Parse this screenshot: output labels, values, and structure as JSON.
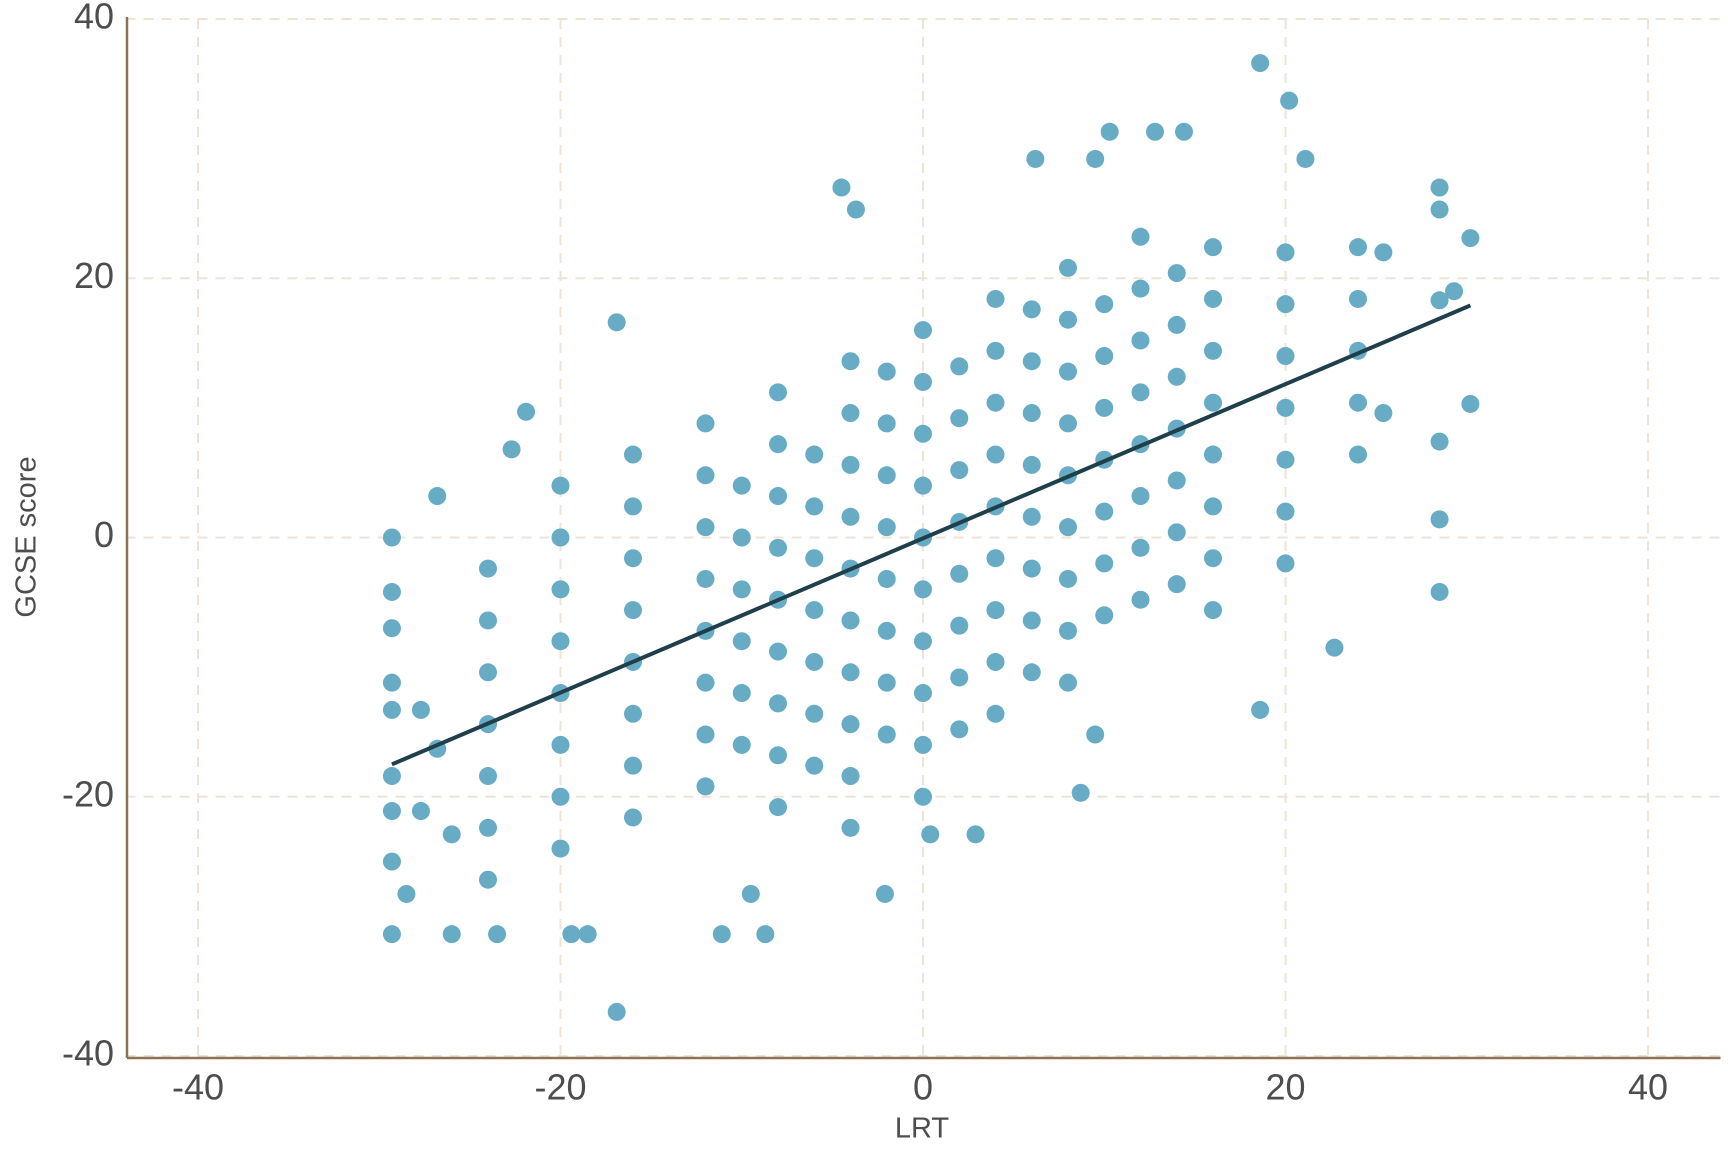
{
  "chart_data": {
    "type": "scatter",
    "x_label": "LRT",
    "y_label": "GCSE score",
    "x": [
      18.6,
      20.2,
      10.3,
      12.8,
      14.4,
      6.2,
      21.1,
      9.5,
      -4.5,
      -3.7,
      28.5,
      28.5,
      30.2,
      -16.9,
      -21.9,
      -22.7,
      -26.8,
      -29.3,
      -29.3,
      -29.3,
      -29.3,
      -29.3,
      -29.3,
      -29.3,
      -29.3,
      -29.3,
      -28.5,
      -26,
      -23.5,
      -16.9,
      -19.4,
      -18.5,
      -11.1,
      -8.7,
      -2.1,
      -9.5,
      28.5,
      28.5,
      22.7,
      18.6,
      8.7,
      9.5,
      30.2,
      28.5,
      28.5,
      29.3,
      25.4,
      25.4,
      2.9,
      0.4,
      -26,
      -27.7,
      -27.7,
      -26.8,
      -24,
      -24,
      -24,
      -24,
      -24,
      -24,
      -24,
      -20,
      -20,
      -20,
      -20,
      -20,
      -20,
      -20,
      -20,
      -16,
      -16,
      -16,
      -16,
      -16,
      -16,
      -16,
      -16,
      -12,
      -12,
      -12,
      -12,
      -12,
      -12,
      -12,
      -12,
      -8,
      -8,
      -8,
      -8,
      -8,
      -8,
      -8,
      -8,
      -8,
      -4,
      -4,
      -4,
      -4,
      -4,
      -4,
      -4,
      -4,
      -4,
      -4,
      0,
      0,
      0,
      0,
      0,
      0,
      0,
      0,
      0,
      0,
      4,
      4,
      4,
      4,
      4,
      4,
      4,
      4,
      4,
      8,
      8,
      8,
      8,
      8,
      8,
      8,
      8,
      8,
      12,
      12,
      12,
      12,
      12,
      12,
      12,
      12,
      16,
      16,
      16,
      16,
      16,
      16,
      16,
      16,
      20,
      20,
      20,
      20,
      20,
      20,
      20,
      24,
      24,
      24,
      24,
      24,
      -10,
      -10,
      -10,
      -10,
      -10,
      -10,
      -6,
      -6,
      -6,
      -6,
      -6,
      -6,
      -6,
      -2,
      -2,
      -2,
      -2,
      -2,
      -2,
      -2,
      -2,
      2,
      2,
      2,
      2,
      2,
      2,
      2,
      2,
      6,
      6,
      6,
      6,
      6,
      6,
      6,
      6,
      10,
      10,
      10,
      10,
      10,
      10,
      10,
      14,
      14,
      14,
      14,
      14,
      14,
      14
    ],
    "values": [
      36.6,
      33.7,
      31.3,
      31.3,
      31.3,
      29.2,
      29.2,
      29.2,
      27,
      25.3,
      27,
      25.3,
      23.1,
      16.6,
      9.7,
      6.8,
      3.2,
      0,
      -4.2,
      -7,
      -11.2,
      -13.3,
      -18.4,
      -21.1,
      -25,
      -30.6,
      -27.5,
      -30.6,
      -30.6,
      -36.6,
      -30.6,
      -30.6,
      -30.6,
      -30.6,
      -27.5,
      -27.5,
      -4.2,
      1.4,
      -8.5,
      -13.3,
      -19.7,
      -15.2,
      10.3,
      7.4,
      18.3,
      19,
      9.6,
      22,
      -22.9,
      -22.9,
      -22.9,
      -21.1,
      -13.3,
      -16.3,
      -26.4,
      -22.4,
      -18.4,
      -14.4,
      -10.4,
      -6.4,
      -2.4,
      -24,
      -20,
      -16,
      -12,
      -8,
      -4,
      0,
      4,
      -21.6,
      -17.6,
      -13.6,
      -9.6,
      -5.6,
      -1.6,
      2.4,
      6.4,
      -19.2,
      -15.2,
      -11.2,
      -7.2,
      -3.2,
      0.8,
      4.8,
      8.8,
      -20.8,
      -16.8,
      -12.8,
      -8.8,
      -4.8,
      -0.8,
      3.2,
      7.2,
      11.2,
      -22.4,
      -18.4,
      -14.4,
      -10.4,
      -6.4,
      -2.4,
      1.6,
      5.6,
      9.6,
      13.6,
      -20,
      -16,
      -12,
      -8,
      -4,
      0,
      4,
      8,
      12,
      16,
      -13.6,
      -9.6,
      -5.6,
      -1.6,
      2.4,
      6.4,
      10.4,
      14.4,
      18.4,
      -11.2,
      -7.2,
      -3.2,
      0.8,
      4.8,
      8.8,
      12.8,
      16.8,
      20.8,
      -4.8,
      -0.8,
      3.2,
      7.2,
      11.2,
      15.2,
      19.2,
      23.2,
      -5.6,
      -1.6,
      2.4,
      6.4,
      10.4,
      14.4,
      18.4,
      22.4,
      -2,
      2,
      6,
      10,
      14,
      18,
      22,
      6.4,
      10.4,
      14.4,
      18.4,
      22.4,
      -16,
      -12,
      -8,
      -4,
      0,
      4,
      -17.6,
      -13.6,
      -9.6,
      -5.6,
      -1.6,
      2.4,
      6.4,
      -15.2,
      -11.2,
      -7.2,
      -3.2,
      0.8,
      4.8,
      8.8,
      12.8,
      -14.8,
      -10.8,
      -6.8,
      -2.8,
      1.2,
      5.2,
      9.2,
      13.2,
      -10.4,
      -6.4,
      -2.4,
      1.6,
      5.6,
      9.6,
      13.6,
      17.6,
      -6,
      -2,
      2,
      6,
      10,
      14,
      18,
      -3.6,
      0.4,
      4.4,
      8.4,
      12.4,
      16.4,
      20.4
    ],
    "color": "#67abc5",
    "fit_line": {
      "x": [
        -29.3,
        30.2
      ],
      "y": [
        -17.5,
        17.9
      ],
      "color": "#1f3f4a"
    },
    "xlim": [
      -44,
      44
    ],
    "ylim": [
      -40,
      40
    ],
    "xticks": [
      -40,
      -20,
      0,
      20,
      40
    ],
    "yticks": [
      -40,
      -20,
      0,
      20,
      40
    ],
    "grid": true
  }
}
